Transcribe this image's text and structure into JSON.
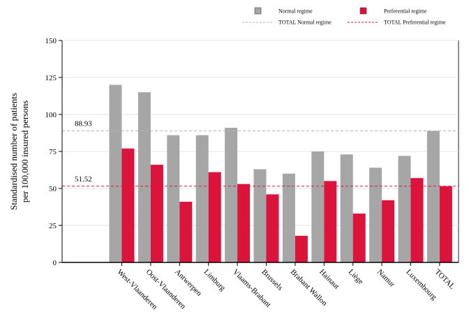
{
  "chart_data": {
    "type": "bar",
    "ylabel": [
      "Standardised number of patients",
      "per 100,000 insured persons"
    ],
    "xlabel": "",
    "ylim": [
      0,
      150
    ],
    "yticks": [
      0,
      25,
      50,
      75,
      100,
      125,
      150
    ],
    "grid": "horizontal",
    "legend_position": "top",
    "categories": [
      "West-Vlaanderen",
      "Oost-Vlaanderen",
      "Antwerpen",
      "Limburg",
      "Vlaams-Brabant",
      "Brussels",
      "Brabant Wallon",
      "Hainaut",
      "Liège",
      "Namur",
      "Luxembourg",
      "TOTAL"
    ],
    "series": [
      {
        "name": "Normal regime",
        "color": "#a6a6a6",
        "values": [
          120,
          115,
          86,
          86,
          91,
          63,
          60,
          75,
          73,
          64,
          72,
          88.93
        ]
      },
      {
        "name": "Preferential regime",
        "color": "#dc143c",
        "values": [
          77,
          66,
          41,
          61,
          53,
          46,
          18,
          55,
          33,
          42,
          57,
          51.52
        ]
      }
    ],
    "reference_lines": [
      {
        "name": "TOTAL Normal regime",
        "value": 88.93,
        "label": "88.93",
        "color": "#b4b4b4"
      },
      {
        "name": "TOTAL Preferential regime",
        "value": 51.52,
        "label": "51.52",
        "color": "#dc143c"
      }
    ]
  }
}
